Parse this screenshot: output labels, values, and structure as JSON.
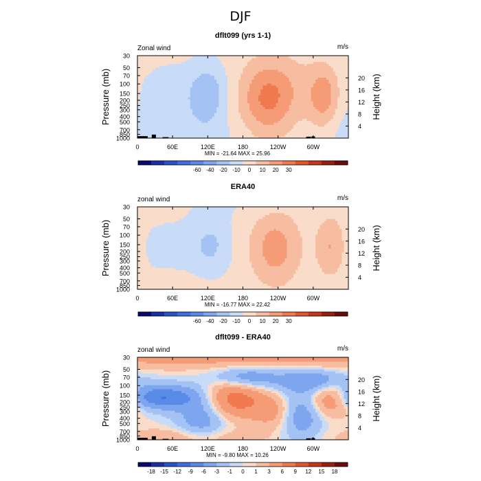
{
  "figure": {
    "title": "DJF",
    "colors": {
      "blue_dark": "#1f2f7a",
      "red_dark": "#7a1010",
      "background": "#ffffff",
      "topography": "#000000"
    }
  },
  "chart_data": [
    {
      "type": "heatmap",
      "title": "dflt099 (yrs 1-1)",
      "field_label": "Zonal wind",
      "units": "m/s",
      "ylabel": "Pressure (mb)",
      "ylabel_right": "Height (km)",
      "xticks": [
        "0",
        "60E",
        "120E",
        "180",
        "120W",
        "60W"
      ],
      "xtick_lon": [
        0,
        60,
        120,
        180,
        240,
        300
      ],
      "xlim": [
        0,
        360
      ],
      "yticks": [
        "30",
        "50",
        "70",
        "100",
        "150",
        "200",
        "250",
        "300",
        "400",
        "500",
        "700",
        "850",
        "1000"
      ],
      "ytick_p": [
        30,
        50,
        70,
        100,
        150,
        200,
        250,
        300,
        400,
        500,
        700,
        850,
        1000
      ],
      "ylim": [
        1000,
        30
      ],
      "height_ticks": [
        "4",
        "8",
        "12",
        "16",
        "20"
      ],
      "height_km": [
        4,
        8,
        12,
        16,
        20
      ],
      "stats": "MIN = -21.64   MAX = 25.96",
      "colorbar": {
        "labels": [
          "-60",
          "-40",
          "-20",
          "-10",
          "0",
          "10",
          "20",
          "30"
        ],
        "colors": [
          "#0a0a6e",
          "#1a2fa3",
          "#2a52c9",
          "#3e6fe0",
          "#5a8ae8",
          "#7ea6ef",
          "#a4c3f4",
          "#c8dbf7",
          "#f9dcc9",
          "#f7bda0",
          "#f59c77",
          "#f07a4f",
          "#e3562c",
          "#c5361a",
          "#98200f",
          "#6b0d05"
        ]
      },
      "field": {
        "base": 3,
        "features": [
          {
            "lon": 120,
            "p": 150,
            "amp": -20,
            "wlon": 22,
            "wz": 0.85
          },
          {
            "lon": 55,
            "p": 180,
            "amp": -8,
            "wlon": 40,
            "wz": 1.0
          },
          {
            "lon": 220,
            "p": 190,
            "amp": 26,
            "wlon": 32,
            "wz": 1.1
          },
          {
            "lon": 318,
            "p": 170,
            "amp": 22,
            "wlon": 18,
            "wz": 0.9
          },
          {
            "lon": 260,
            "p": 110,
            "amp": 8,
            "wlon": 40,
            "wz": 1.0
          },
          {
            "lon": 100,
            "p": 850,
            "amp": -6,
            "wlon": 60,
            "wz": 0.7
          },
          {
            "lon": 355,
            "p": 800,
            "amp": -5,
            "wlon": 30,
            "wz": 0.7
          }
        ],
        "topography": [
          {
            "lon": 5,
            "p": 920,
            "wlon": 25
          },
          {
            "lon": 28,
            "p": 860,
            "wlon": 7
          },
          {
            "lon": 48,
            "p": 960,
            "wlon": 10
          },
          {
            "lon": 292,
            "p": 940,
            "wlon": 8
          },
          {
            "lon": 300,
            "p": 930,
            "wlon": 6
          }
        ]
      }
    },
    {
      "type": "heatmap",
      "title": "ERA40",
      "field_label": "zonal wind",
      "units": "m/s",
      "ylabel": "Pressure (mb)",
      "ylabel_right": "Height (km)",
      "xticks": [
        "0",
        "60E",
        "120E",
        "180",
        "120W",
        "60W"
      ],
      "xtick_lon": [
        0,
        60,
        120,
        180,
        240,
        300
      ],
      "xlim": [
        0,
        360
      ],
      "yticks": [
        "30",
        "50",
        "70",
        "100",
        "150",
        "200",
        "250",
        "300",
        "400",
        "500",
        "700",
        "850",
        "1000"
      ],
      "ytick_p": [
        30,
        50,
        70,
        100,
        150,
        200,
        250,
        300,
        400,
        500,
        700,
        850,
        1000
      ],
      "ylim": [
        1000,
        30
      ],
      "height_ticks": [
        "4",
        "8",
        "12",
        "16",
        "20"
      ],
      "height_km": [
        4,
        8,
        12,
        16,
        20
      ],
      "stats": "MIN = -16.77   MAX = 22.42",
      "colorbar": {
        "labels": [
          "-60",
          "-40",
          "-20",
          "-10",
          "0",
          "10",
          "20",
          "30"
        ],
        "colors": [
          "#0a0a6e",
          "#1a2fa3",
          "#2a52c9",
          "#3e6fe0",
          "#5a8ae8",
          "#7ea6ef",
          "#a4c3f4",
          "#c8dbf7",
          "#f9dcc9",
          "#f7bda0",
          "#f59c77",
          "#f07a4f",
          "#e3562c",
          "#c5361a",
          "#98200f",
          "#6b0d05"
        ]
      },
      "field": {
        "base": 3,
        "features": [
          {
            "lon": 125,
            "p": 150,
            "amp": -14,
            "wlon": 24,
            "wz": 0.85
          },
          {
            "lon": 50,
            "p": 170,
            "amp": -5,
            "wlon": 45,
            "wz": 1.0
          },
          {
            "lon": 235,
            "p": 170,
            "amp": 22,
            "wlon": 30,
            "wz": 1.1
          },
          {
            "lon": 330,
            "p": 160,
            "amp": 18,
            "wlon": 18,
            "wz": 0.9
          },
          {
            "lon": 180,
            "p": 30,
            "amp": -3,
            "wlon": 60,
            "wz": 0.4
          },
          {
            "lon": 60,
            "p": 950,
            "amp": 4,
            "wlon": 40,
            "wz": 0.4
          }
        ],
        "topography": []
      }
    },
    {
      "type": "heatmap",
      "title": "dflt099 - ERA40",
      "field_label": "zonal wind",
      "units": "m/s",
      "ylabel": "Pressure (mb)",
      "ylabel_right": "Height (km)",
      "xticks": [
        "0",
        "60E",
        "120E",
        "180",
        "120W",
        "60W"
      ],
      "xtick_lon": [
        0,
        60,
        120,
        180,
        240,
        300
      ],
      "xlim": [
        0,
        360
      ],
      "yticks": [
        "30",
        "50",
        "70",
        "100",
        "150",
        "200",
        "250",
        "300",
        "400",
        "500",
        "700",
        "850",
        "1000"
      ],
      "ytick_p": [
        30,
        50,
        70,
        100,
        150,
        200,
        250,
        300,
        400,
        500,
        700,
        850,
        1000
      ],
      "ylim": [
        1000,
        30
      ],
      "height_ticks": [
        "4",
        "8",
        "12",
        "16",
        "20"
      ],
      "height_km": [
        4,
        8,
        12,
        16,
        20
      ],
      "stats": "MIN = -9.80   MAX = 10.26",
      "colorbar": {
        "labels": [
          "-18",
          "-15",
          "-12",
          "-9",
          "-6",
          "-3",
          "-1",
          "0",
          "1",
          "3",
          "6",
          "9",
          "12",
          "15",
          "18"
        ],
        "colors": [
          "#0a0a6e",
          "#1a2fa3",
          "#2a52c9",
          "#3e6fe0",
          "#5a8ae8",
          "#7ea6ef",
          "#a4c3f4",
          "#c8dbf7",
          "#f9dcc9",
          "#f7bda0",
          "#f59c77",
          "#f07a4f",
          "#e3562c",
          "#c5361a",
          "#98200f",
          "#6b0d05"
        ]
      },
      "field": {
        "base": 0,
        "features": [
          {
            "lon": 180,
            "p": 30,
            "amp": 4,
            "wlon": 400,
            "wz": 0.35
          },
          {
            "lon": 40,
            "p": 160,
            "amp": -9,
            "wlon": 45,
            "wz": 0.35
          },
          {
            "lon": 185,
            "p": 70,
            "amp": -6,
            "wlon": 40,
            "wz": 0.35
          },
          {
            "lon": 300,
            "p": 80,
            "amp": -6,
            "wlon": 40,
            "wz": 0.35
          },
          {
            "lon": 165,
            "p": 170,
            "amp": 8,
            "wlon": 35,
            "wz": 0.6
          },
          {
            "lon": 330,
            "p": 170,
            "amp": 7,
            "wlon": 25,
            "wz": 0.5
          },
          {
            "lon": 230,
            "p": 300,
            "amp": 4,
            "wlon": 25,
            "wz": 0.5
          },
          {
            "lon": 110,
            "p": 400,
            "amp": -5,
            "wlon": 30,
            "wz": 0.7
          },
          {
            "lon": 280,
            "p": 350,
            "amp": -5,
            "wlon": 25,
            "wz": 0.7
          },
          {
            "lon": 90,
            "p": 900,
            "amp": 3,
            "wlon": 80,
            "wz": 0.3
          }
        ],
        "topography": [
          {
            "lon": 5,
            "p": 920,
            "wlon": 25
          },
          {
            "lon": 28,
            "p": 860,
            "wlon": 7
          },
          {
            "lon": 48,
            "p": 960,
            "wlon": 10
          },
          {
            "lon": 292,
            "p": 940,
            "wlon": 8
          },
          {
            "lon": 300,
            "p": 930,
            "wlon": 6
          }
        ]
      }
    }
  ]
}
